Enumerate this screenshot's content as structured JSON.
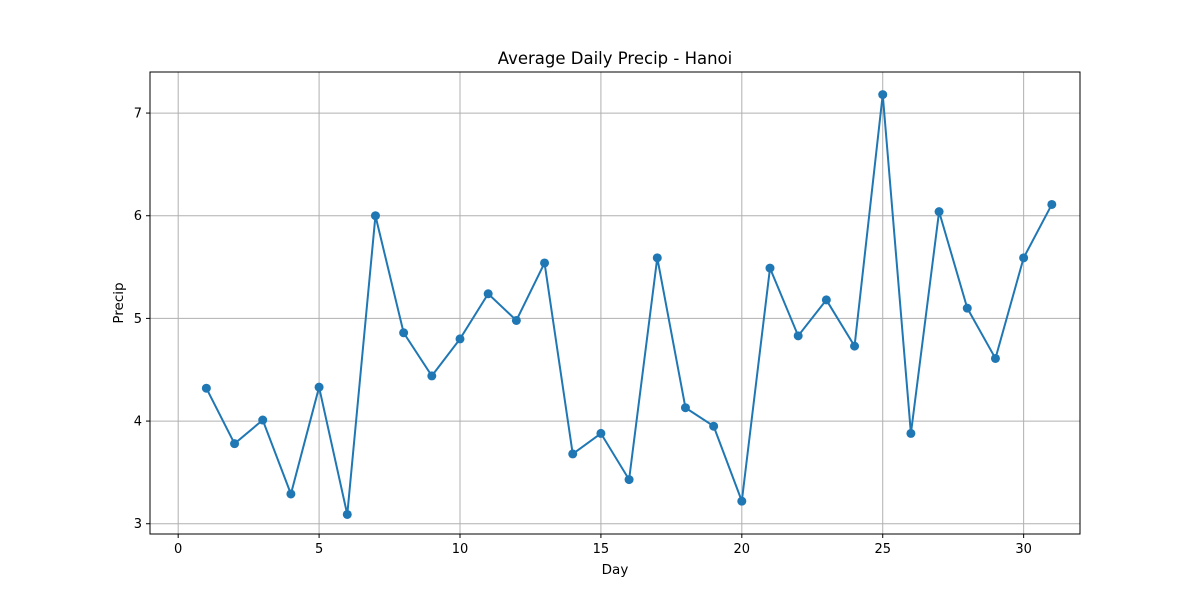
{
  "chart_data": {
    "type": "line",
    "title": "Average Daily Precip - Hanoi",
    "xlabel": "Day",
    "ylabel": "Precip",
    "xlim": [
      -1,
      32
    ],
    "ylim": [
      2.9,
      7.4
    ],
    "xticks": [
      0,
      5,
      10,
      15,
      20,
      25,
      30
    ],
    "yticks": [
      3,
      4,
      5,
      6,
      7
    ],
    "grid": true,
    "marker": "circle",
    "color": "#1f77b4",
    "x": [
      1,
      2,
      3,
      4,
      5,
      6,
      7,
      8,
      9,
      10,
      11,
      12,
      13,
      14,
      15,
      16,
      17,
      18,
      19,
      20,
      21,
      22,
      23,
      24,
      25,
      26,
      27,
      28,
      29,
      30,
      31
    ],
    "values": [
      4.32,
      3.78,
      4.01,
      3.29,
      4.33,
      3.09,
      6.0,
      4.86,
      4.44,
      4.8,
      5.24,
      4.98,
      5.54,
      3.68,
      3.88,
      3.43,
      5.59,
      4.13,
      3.95,
      3.22,
      5.49,
      4.83,
      5.18,
      4.73,
      7.18,
      3.88,
      6.04,
      5.1,
      4.61,
      5.59,
      6.11
    ]
  }
}
